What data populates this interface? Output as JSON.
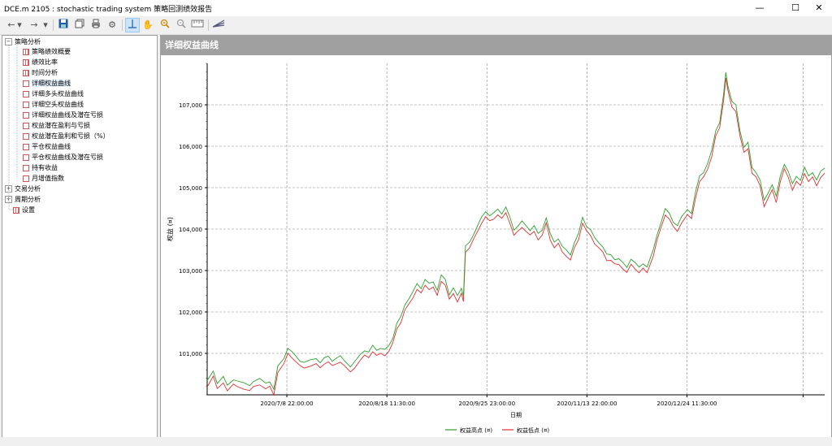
{
  "window": {
    "title": "DCE.m 2105 : stochastic trading system 策略回测绩效报告",
    "minimize": "—",
    "maximize": "☐",
    "close": "✕"
  },
  "toolbar": {
    "icons": [
      "back-icon",
      "dropdown-icon",
      "forward-icon",
      "dropdown-icon",
      "save-icon",
      "copy-icon",
      "print-icon",
      "settings-icon",
      "crosshair-icon",
      "hand-icon",
      "zoom-in-icon",
      "zoom-out-icon",
      "ruler-icon",
      "chart-style-icon"
    ]
  },
  "tree": {
    "groups": [
      {
        "label": "策略分析",
        "expanded": true
      },
      {
        "label": "交易分析",
        "expanded": false
      },
      {
        "label": "周期分析",
        "expanded": false
      }
    ],
    "items": [
      {
        "label": "策略绩效概要",
        "icon": "table-icon"
      },
      {
        "label": "绩效比率",
        "icon": "table-icon"
      },
      {
        "label": "时间分析",
        "icon": "table-icon"
      },
      {
        "label": "详细权益曲线",
        "icon": "chart-icon",
        "selected": true
      },
      {
        "label": "详细多头权益曲线",
        "icon": "chart-icon"
      },
      {
        "label": "详细空头权益曲线",
        "icon": "chart-icon"
      },
      {
        "label": "详细权益曲线及潜在亏损",
        "icon": "chart-icon"
      },
      {
        "label": "权益潜在盈利与亏损",
        "icon": "chart-icon"
      },
      {
        "label": "权益潜在盈利和亏损（%）",
        "icon": "chart-icon"
      },
      {
        "label": "平仓权益曲线",
        "icon": "chart-icon"
      },
      {
        "label": "平仓权益曲线及潜在亏损",
        "icon": "chart-icon"
      },
      {
        "label": "持有收益",
        "icon": "chart-icon"
      },
      {
        "label": "月增值指数",
        "icon": "chart-icon"
      }
    ],
    "settings": {
      "label": "设置",
      "icon": "table-icon"
    }
  },
  "panel": {
    "title": "详细权益曲线"
  },
  "colors": {
    "high": "#2ca02c",
    "low": "#e03030",
    "grid": "#888888",
    "panel_head": "#a0a0a0"
  },
  "chart_data": {
    "type": "line",
    "xlabel": "日期",
    "ylabel": "权益 (¤)",
    "ylim": [
      100000,
      108000
    ],
    "yticks": [
      101000,
      102000,
      103000,
      104000,
      105000,
      106000,
      107000
    ],
    "ytick_labels": [
      "101,000",
      "102,000",
      "103,000",
      "104,000",
      "105,000",
      "106,000",
      "107,000"
    ],
    "xtick_labels": [
      "2020/7/8 22:00:00",
      "2020/8/18 11:30:00",
      "2020/9/25 23:00:00",
      "2020/11/13 22:00:00",
      "2020/12/24 11:30:00"
    ],
    "series": [
      {
        "name": "权益高点 (¤)",
        "color": "#2ca02c"
      },
      {
        "name": "权益低点 (¤)",
        "color": "#e03030"
      }
    ],
    "points": [
      [
        0,
        100250
      ],
      [
        3,
        100500
      ],
      [
        5,
        100200
      ],
      [
        8,
        100350
      ],
      [
        10,
        100150
      ],
      [
        13,
        100300
      ],
      [
        15,
        100250
      ],
      [
        18,
        100200
      ],
      [
        21,
        100150
      ],
      [
        23,
        100250
      ],
      [
        26,
        100300
      ],
      [
        29,
        100200
      ],
      [
        31,
        100250
      ],
      [
        33,
        100050
      ],
      [
        35,
        100600
      ],
      [
        38,
        100800
      ],
      [
        40,
        101050
      ],
      [
        42,
        100950
      ],
      [
        44,
        100850
      ],
      [
        46,
        100750
      ],
      [
        48,
        100700
      ],
      [
        51,
        100750
      ],
      [
        54,
        100800
      ],
      [
        56,
        100700
      ],
      [
        58,
        100800
      ],
      [
        60,
        100850
      ],
      [
        62,
        100750
      ],
      [
        64,
        100800
      ],
      [
        66,
        100850
      ],
      [
        68,
        100750
      ],
      [
        71,
        100600
      ],
      [
        73,
        100700
      ],
      [
        76,
        100900
      ],
      [
        78,
        101000
      ],
      [
        80,
        100950
      ],
      [
        82,
        101100
      ],
      [
        84,
        101000
      ],
      [
        86,
        101050
      ],
      [
        88,
        101000
      ],
      [
        90,
        101100
      ],
      [
        92,
        101300
      ],
      [
        94,
        101650
      ],
      [
        96,
        101800
      ],
      [
        98,
        102100
      ],
      [
        100,
        102250
      ],
      [
        102,
        102400
      ],
      [
        104,
        102600
      ],
      [
        106,
        102500
      ],
      [
        108,
        102700
      ],
      [
        110,
        102600
      ],
      [
        112,
        102650
      ],
      [
        114,
        102450
      ],
      [
        116,
        102800
      ],
      [
        118,
        102700
      ],
      [
        120,
        102350
      ],
      [
        122,
        102500
      ],
      [
        124,
        102300
      ],
      [
        126,
        102500
      ],
      [
        127,
        102300
      ],
      [
        128,
        103500
      ],
      [
        130,
        103600
      ],
      [
        132,
        103800
      ],
      [
        134,
        104000
      ],
      [
        136,
        104200
      ],
      [
        138,
        104350
      ],
      [
        140,
        104250
      ],
      [
        142,
        104300
      ],
      [
        144,
        104400
      ],
      [
        146,
        104300
      ],
      [
        148,
        104450
      ],
      [
        150,
        104200
      ],
      [
        152,
        103900
      ],
      [
        154,
        104000
      ],
      [
        156,
        104100
      ],
      [
        158,
        104000
      ],
      [
        160,
        103900
      ],
      [
        162,
        104000
      ],
      [
        164,
        103800
      ],
      [
        166,
        103900
      ],
      [
        168,
        104200
      ],
      [
        170,
        103800
      ],
      [
        172,
        103600
      ],
      [
        174,
        103700
      ],
      [
        176,
        103500
      ],
      [
        178,
        103400
      ],
      [
        180,
        103300
      ],
      [
        182,
        103600
      ],
      [
        184,
        103800
      ],
      [
        186,
        104200
      ],
      [
        188,
        104000
      ],
      [
        190,
        103900
      ],
      [
        192,
        103700
      ],
      [
        194,
        103600
      ],
      [
        196,
        103500
      ],
      [
        198,
        103300
      ],
      [
        200,
        103300
      ],
      [
        202,
        103200
      ],
      [
        204,
        103200
      ],
      [
        206,
        103100
      ],
      [
        208,
        103000
      ],
      [
        210,
        103200
      ],
      [
        212,
        103100
      ],
      [
        214,
        103000
      ],
      [
        216,
        103100
      ],
      [
        218,
        103000
      ],
      [
        221,
        103400
      ],
      [
        223,
        103800
      ],
      [
        225,
        104100
      ],
      [
        227,
        104400
      ],
      [
        229,
        104300
      ],
      [
        231,
        104100
      ],
      [
        233,
        104000
      ],
      [
        235,
        104200
      ],
      [
        238,
        104400
      ],
      [
        240,
        104300
      ],
      [
        242,
        104800
      ],
      [
        244,
        105200
      ],
      [
        246,
        105300
      ],
      [
        248,
        105500
      ],
      [
        250,
        105800
      ],
      [
        252,
        106300
      ],
      [
        254,
        106500
      ],
      [
        256,
        107200
      ],
      [
        257,
        107700
      ],
      [
        258,
        107400
      ],
      [
        260,
        107000
      ],
      [
        262,
        106900
      ],
      [
        264,
        106300
      ],
      [
        266,
        105900
      ],
      [
        268,
        106000
      ],
      [
        270,
        105400
      ],
      [
        272,
        105300
      ],
      [
        274,
        105100
      ],
      [
        276,
        104600
      ],
      [
        278,
        104800
      ],
      [
        280,
        105000
      ],
      [
        282,
        104700
      ],
      [
        284,
        105200
      ],
      [
        286,
        105500
      ],
      [
        288,
        105300
      ],
      [
        290,
        105000
      ],
      [
        292,
        105200
      ],
      [
        294,
        105100
      ],
      [
        296,
        105400
      ],
      [
        298,
        105200
      ],
      [
        300,
        105300
      ],
      [
        302,
        105100
      ],
      [
        304,
        105300
      ],
      [
        306,
        105400
      ]
    ]
  }
}
